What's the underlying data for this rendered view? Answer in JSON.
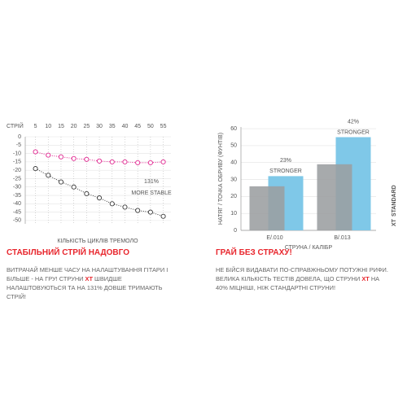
{
  "chart_data": [
    {
      "type": "line",
      "ylabel": "СТРІЙ",
      "xlabel": "КІЛЬКІСТЬ ЦИКЛІВ ТРЕМОЛО",
      "x": [
        5,
        10,
        15,
        20,
        25,
        30,
        35,
        40,
        45,
        50,
        55
      ],
      "xlim": [
        1,
        58
      ],
      "xticks": [
        5,
        10,
        15,
        20,
        25,
        30,
        35,
        40,
        45,
        50,
        55
      ],
      "ylim": [
        -52,
        0
      ],
      "yticks": [
        0,
        -5,
        -10,
        -15,
        -20,
        -25,
        -30,
        -35,
        -40,
        -45,
        -50
      ],
      "grid": true,
      "series": [
        {
          "color": "#e0258f",
          "values": [
            -9,
            -11,
            -12,
            -13,
            -13.5,
            -14.5,
            -15,
            -15,
            -15.5,
            -15.5,
            -15
          ]
        },
        {
          "color": "#3a3a3a",
          "values": [
            -19,
            -23,
            -27,
            -30,
            -34,
            -36.5,
            -40,
            -42,
            -44,
            -45,
            -47.5
          ]
        }
      ],
      "annotation": "131%",
      "annotation_note": "MORE STABLE"
    },
    {
      "type": "bar",
      "ylabel": "НАТЯГ / ТОЧКА ОБРИВУ (ФУНТІВ)",
      "xlabel": "СТРУНА / КАЛІБР",
      "categories": [
        "E/.010",
        "B/.013"
      ],
      "ylim": [
        0,
        61
      ],
      "yticks": [
        0,
        10,
        20,
        30,
        40,
        50,
        60
      ],
      "grid": true,
      "series": [
        {
          "name": "STANDARD",
          "color": "#9b9ea1",
          "values": [
            26,
            39
          ]
        },
        {
          "name": "XT",
          "color": "#7fc8e8",
          "values": [
            32,
            55
          ]
        }
      ],
      "gain_labels": [
        "23%",
        "42%"
      ],
      "gain_note": "STRONGER"
    }
  ],
  "sections": [
    {
      "heading": "СТАБІЛЬНИЙ СТРІЙ НАДОВГО",
      "text": [
        "ВИТРАЧАЙ МЕНШЕ ЧАСУ НА НАЛАШТУВАННЯ ГІТАРИ І БІЛЬШЕ - НА ГРУ! СТРУНИ ",
        "XT",
        " ШВИДШЕ НАЛАШТОВУЮТЬСЯ ТА НА 131% ДОВШЕ ТРИМАЮТЬ СТРІЙ!"
      ]
    },
    {
      "heading": "ГРАЙ БЕЗ СТРАХУ!",
      "text": [
        "НЕ БІЙСЯ ВИДАВАТИ ПО-СПРАВЖНЬОМУ ПОТУЖНІ РИФИ. ВЕЛИКА КІЛЬКІСТЬ ТЕСТІВ ДОВЕЛА, ЩО СТРУНИ ",
        "XT",
        " НА 40% МІЦНІШІ, НІЖ СТАНДАРТНІ СТРУНИ!"
      ]
    }
  ]
}
